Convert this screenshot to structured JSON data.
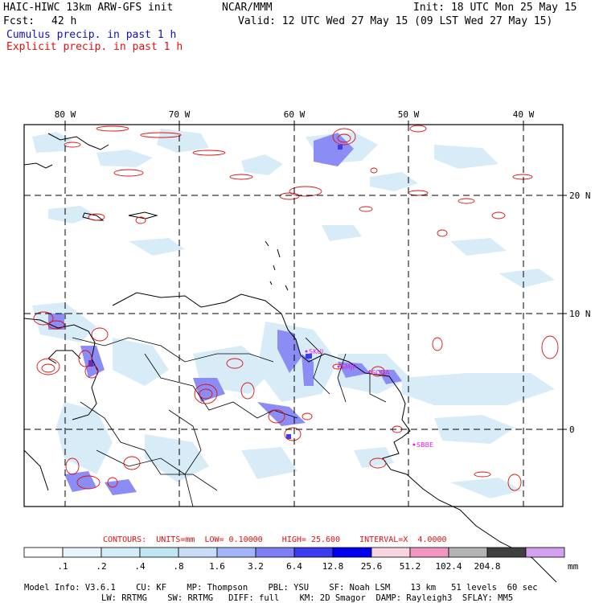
{
  "header": {
    "model": "HAIC-HIWC 13km ARW-GFS init",
    "center": "NCAR/MMM",
    "init": "Init: 18 UTC Mon 25 May 15",
    "fcst_label": "Fcst:",
    "fcst_value": "42 h",
    "valid": "Valid: 12 UTC Wed 27 May 15 (09 LST Wed 27 May 15)",
    "cumulus": "Cumulus precip. in past 1 h",
    "explicit": "Explicit precip. in past 1 h"
  },
  "map": {
    "lon_labels": [
      "80 W",
      "70 W",
      "60 W",
      "50 W",
      "40 W"
    ],
    "lat_labels": [
      "20 N",
      "10 N",
      "0"
    ],
    "stations": [
      "SKUI",
      "SMJP",
      "SOCA",
      "SBBE"
    ]
  },
  "contours": {
    "label": "CONTOURS:",
    "units": "UNITS=mm",
    "low": "LOW= 0.10000",
    "high": "HIGH= 25.600",
    "interval": "INTERVAL=X  4.0000"
  },
  "colorbar": {
    "labels": [
      ".1",
      ".2",
      ".4",
      ".8",
      "1.6",
      "3.2",
      "6.4",
      "12.8",
      "25.6",
      "51.2",
      "102.4",
      "204.8"
    ],
    "colors": [
      "#ffffff",
      "#e8f4fc",
      "#d4ecf8",
      "#bfe6f2",
      "#c8dcf8",
      "#a4b4f8",
      "#7f7ff5",
      "#3b3bf0",
      "#0000f0",
      "#f8d4e0",
      "#f096c0",
      "#b4b4b4",
      "#404040",
      "#d4a0f0"
    ],
    "unit": "mm"
  },
  "model_info": {
    "line1": [
      "Model Info: V3.6.1",
      "CU: KF",
      "MP: Thompson",
      "PBL: YSU",
      "SF: Noah LSM",
      "13 km",
      "51 levels",
      "60 sec"
    ],
    "line2": [
      "LW: RRTMG",
      "SW: RRTMG",
      "DIFF: full",
      "KM: 2D Smagor",
      "DAMP: Rayleigh3",
      "SFLAY: MM5"
    ]
  }
}
